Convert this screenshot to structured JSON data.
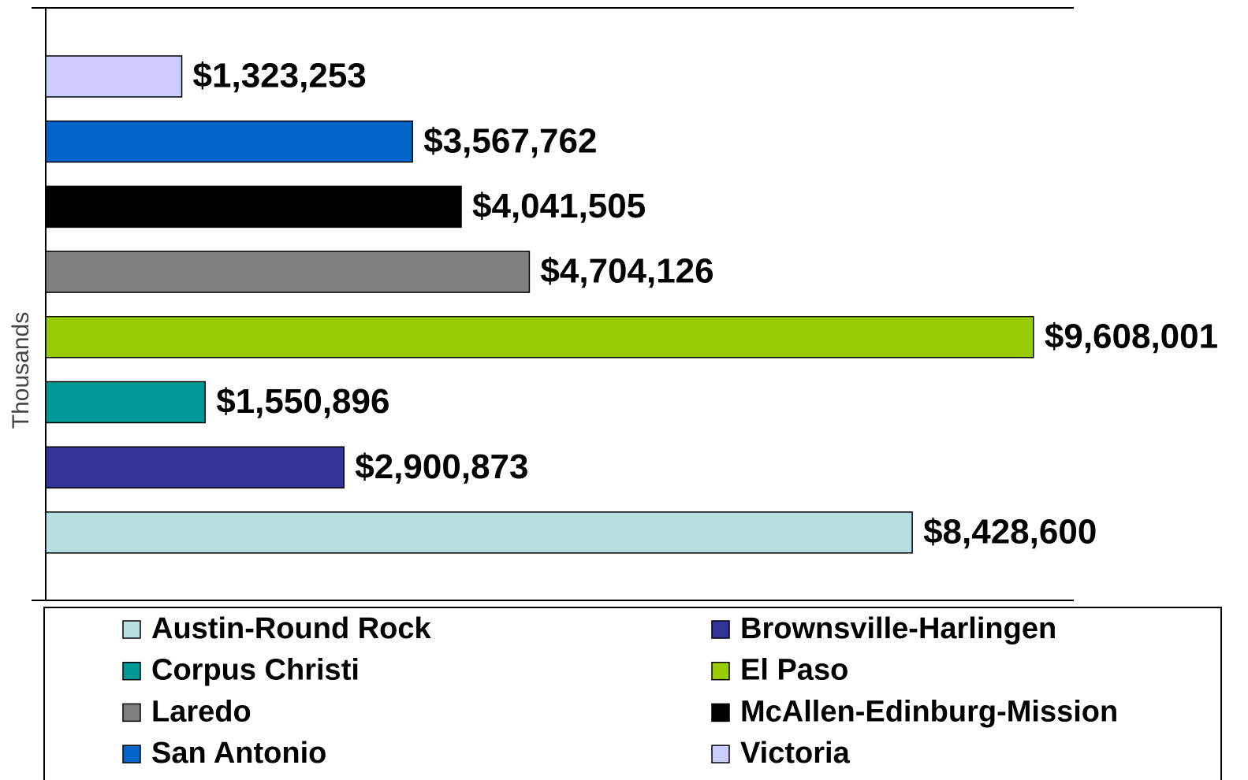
{
  "chart_data": {
    "type": "bar",
    "orientation": "horizontal",
    "x_label": "Thousands",
    "xlim": [
      0,
      10000000
    ],
    "series": [
      {
        "name": "Austin-Round Rock",
        "color": "#b8e0e3",
        "values": [
          8428600
        ],
        "value_labels": [
          "$8,428,600"
        ]
      },
      {
        "name": "Brownsville-Harlingen",
        "color": "#333399",
        "values": [
          2900873
        ],
        "value_labels": [
          "$2,900,873"
        ]
      },
      {
        "name": "Corpus Christi",
        "color": "#009999",
        "values": [
          1550896
        ],
        "value_labels": [
          "$1,550,896"
        ]
      },
      {
        "name": "El Paso",
        "color": "#99cc00",
        "values": [
          9608001
        ],
        "value_labels": [
          "$9,608,001"
        ]
      },
      {
        "name": "Laredo",
        "color": "#808080",
        "values": [
          4704126
        ],
        "value_labels": [
          "$4,704,126"
        ]
      },
      {
        "name": "McAllen-Edinburg-Mission",
        "color": "#000000",
        "values": [
          4041505
        ],
        "value_labels": [
          "$4,041,505"
        ]
      },
      {
        "name": "San Antonio",
        "color": "#0066cc",
        "values": [
          3567762
        ],
        "value_labels": [
          "$3,567,762"
        ]
      },
      {
        "name": "Victoria",
        "color": "#ccccff",
        "values": [
          1323253
        ],
        "value_labels": [
          "$1,323,253"
        ]
      }
    ]
  }
}
